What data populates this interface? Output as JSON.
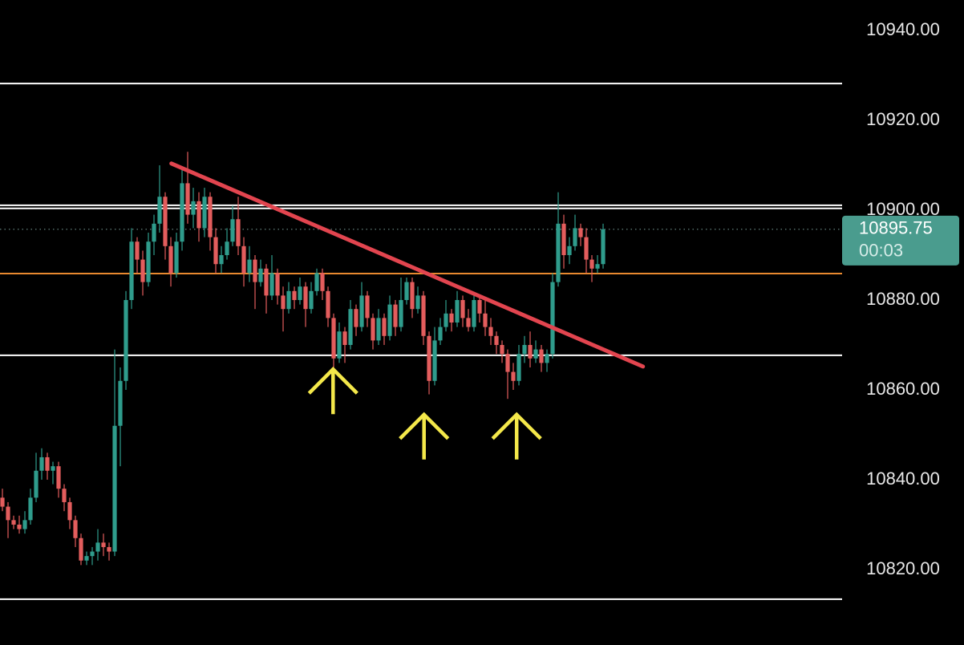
{
  "chart_data": {
    "type": "candlestick",
    "up_color": "#2f9c8c",
    "down_color": "#e35d5d",
    "xlim": [
      -0.43,
      149.57
    ],
    "ylim": [
      10803.2,
      10946.8
    ],
    "yticks": [
      {
        "value": 10940,
        "label": "10940.00"
      },
      {
        "value": 10920,
        "label": "10920.00"
      },
      {
        "value": 10900,
        "label": "10900.00"
      },
      {
        "value": 10880,
        "label": "10880.00"
      },
      {
        "value": 10860,
        "label": "10860.00"
      },
      {
        "value": 10840,
        "label": "10840.00"
      },
      {
        "value": 10820,
        "label": "10820.00"
      }
    ],
    "candles": [
      [
        10836,
        10838,
        10833,
        10834
      ],
      [
        10834,
        10835,
        10827,
        10831
      ],
      [
        10831,
        10832,
        10829,
        10830
      ],
      [
        10830,
        10832,
        10828,
        10829
      ],
      [
        10829,
        10833,
        10828,
        10831
      ],
      [
        10831,
        10838,
        10830,
        10836
      ],
      [
        10836,
        10846,
        10835,
        10842
      ],
      [
        10842,
        10847,
        10840,
        10845
      ],
      [
        10845,
        10846,
        10840,
        10842
      ],
      [
        10842,
        10844,
        10839,
        10843
      ],
      [
        10843,
        10844,
        10836,
        10838
      ],
      [
        10838,
        10839,
        10833,
        10835
      ],
      [
        10835,
        10836,
        10829,
        10831
      ],
      [
        10831,
        10832,
        10825,
        10827
      ],
      [
        10827,
        10828,
        10821,
        10822
      ],
      [
        10822,
        10824,
        10821,
        10823
      ],
      [
        10823,
        10825,
        10821,
        10824
      ],
      [
        10824,
        10829,
        10822,
        10826
      ],
      [
        10826,
        10828,
        10823,
        10825
      ],
      [
        10825,
        10826,
        10822,
        10824
      ],
      [
        10824,
        10869,
        10823,
        10852
      ],
      [
        10852,
        10865,
        10843,
        10862
      ],
      [
        10862,
        10882,
        10860,
        10880
      ],
      [
        10880,
        10896,
        10878,
        10893
      ],
      [
        10893,
        10894,
        10886,
        10889
      ],
      [
        10889,
        10891,
        10881,
        10884
      ],
      [
        10884,
        10895,
        10883,
        10893
      ],
      [
        10893,
        10899,
        10890,
        10897
      ],
      [
        10897,
        10910,
        10895,
        10903
      ],
      [
        10903,
        10904,
        10889,
        10892
      ],
      [
        10892,
        10894,
        10883,
        10886
      ],
      [
        10886,
        10895,
        10885,
        10893
      ],
      [
        10893,
        10909,
        10891,
        10906
      ],
      [
        10906,
        10913,
        10897,
        10899
      ],
      [
        10899,
        10905,
        10896,
        10902
      ],
      [
        10902,
        10904,
        10893,
        10896
      ],
      [
        10896,
        10905,
        10894,
        10903
      ],
      [
        10903,
        10904,
        10891,
        10894
      ],
      [
        10894,
        10896,
        10886,
        10888
      ],
      [
        10888,
        10892,
        10886,
        10890
      ],
      [
        10890,
        10896,
        10889,
        10893
      ],
      [
        10893,
        10901,
        10892,
        10898
      ],
      [
        10898,
        10903,
        10890,
        10892
      ],
      [
        10892,
        10894,
        10883,
        10886
      ],
      [
        10886,
        10892,
        10884,
        10889
      ],
      [
        10889,
        10890,
        10878,
        10884
      ],
      [
        10884,
        10889,
        10883,
        10887
      ],
      [
        10887,
        10888,
        10877,
        10881
      ],
      [
        10881,
        10890,
        10880,
        10886
      ],
      [
        10886,
        10887,
        10879,
        10881
      ],
      [
        10881,
        10883,
        10873,
        10878
      ],
      [
        10878,
        10884,
        10877,
        10882
      ],
      [
        10882,
        10883,
        10878,
        10880
      ],
      [
        10880,
        10885,
        10879,
        10883
      ],
      [
        10883,
        10884,
        10874,
        10878
      ],
      [
        10878,
        10884,
        10877,
        10882
      ],
      [
        10882,
        10887,
        10881,
        10886
      ],
      [
        10886,
        10887,
        10880,
        10882
      ],
      [
        10882,
        10883,
        10874,
        10876
      ],
      [
        10876,
        10877,
        10865,
        10867
      ],
      [
        10867,
        10875,
        10866,
        10873
      ],
      [
        10873,
        10874,
        10866,
        10870
      ],
      [
        10870,
        10880,
        10869,
        10878
      ],
      [
        10878,
        10879,
        10872,
        10874
      ],
      [
        10874,
        10884,
        10873,
        10881
      ],
      [
        10881,
        10882,
        10874,
        10876
      ],
      [
        10876,
        10877,
        10869,
        10871
      ],
      [
        10871,
        10878,
        10870,
        10876
      ],
      [
        10876,
        10877,
        10870,
        10872
      ],
      [
        10872,
        10881,
        10871,
        10879
      ],
      [
        10879,
        10880,
        10872,
        10874
      ],
      [
        10874,
        10885,
        10873,
        10880
      ],
      [
        10880,
        10885,
        10879,
        10884
      ],
      [
        10884,
        10885,
        10876,
        10878
      ],
      [
        10878,
        10883,
        10877,
        10881
      ],
      [
        10881,
        10882,
        10870,
        10872
      ],
      [
        10872,
        10873,
        10859,
        10862
      ],
      [
        10862,
        10874,
        10861,
        10871
      ],
      [
        10871,
        10876,
        10870,
        10874
      ],
      [
        10874,
        10880,
        10873,
        10877
      ],
      [
        10877,
        10878,
        10873,
        10875
      ],
      [
        10875,
        10882,
        10874,
        10880
      ],
      [
        10880,
        10881,
        10874,
        10876
      ],
      [
        10876,
        10878,
        10873,
        10874
      ],
      [
        10874,
        10881,
        10873,
        10880
      ],
      [
        10880,
        10881,
        10875,
        10877
      ],
      [
        10877,
        10880,
        10872,
        10874
      ],
      [
        10874,
        10876,
        10870,
        10872
      ],
      [
        10872,
        10873,
        10868,
        10870
      ],
      [
        10870,
        10871,
        10866,
        10868
      ],
      [
        10868,
        10869,
        10858,
        10864
      ],
      [
        10864,
        10866,
        10860,
        10862
      ],
      [
        10862,
        10870,
        10861,
        10868
      ],
      [
        10868,
        10872,
        10866,
        10870
      ],
      [
        10870,
        10873,
        10865,
        10867
      ],
      [
        10867,
        10871,
        10866,
        10869
      ],
      [
        10869,
        10870,
        10864,
        10866
      ],
      [
        10866,
        10869,
        10864,
        10868
      ],
      [
        10868,
        10886,
        10867,
        10884
      ],
      [
        10884,
        10904,
        10883,
        10897
      ],
      [
        10897,
        10899,
        10887,
        10890
      ],
      [
        10890,
        10894,
        10888,
        10892
      ],
      [
        10892,
        10899,
        10891,
        10896
      ],
      [
        10896,
        10897,
        10892,
        10894
      ],
      [
        10894,
        10896,
        10886,
        10889
      ],
      [
        10889,
        10890,
        10884,
        10887
      ],
      [
        10887,
        10890,
        10886,
        10888
      ],
      [
        10888,
        10897,
        10887,
        10895.75
      ]
    ],
    "levels": [
      {
        "value": 10928.2,
        "color": "#ffffff"
      },
      {
        "value": 10901.1,
        "color": "#ffffff"
      },
      {
        "value": 10900.4,
        "color": "#ffffff"
      },
      {
        "value": 10867.7,
        "color": "#ffffff"
      },
      {
        "value": 10813.4,
        "color": "#ffffff"
      },
      {
        "value": 10885.9,
        "color": "#e8892f"
      }
    ],
    "trendline": {
      "x": [
        30.1,
        114.1
      ],
      "y": [
        10910.4,
        10865.2
      ],
      "color": "#e2454f"
    },
    "arrows": {
      "color": "#f4e84a",
      "x": [
        58.9,
        75.1,
        91.6
      ],
      "y": [
        10864.6,
        10854.5,
        10854.5
      ]
    },
    "last_price": 10895.75,
    "countdown": "00:03",
    "last_price_color": "#4a9c8e"
  }
}
